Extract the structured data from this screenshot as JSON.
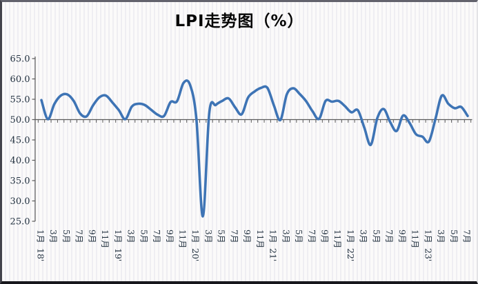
{
  "chart_data": {
    "type": "line",
    "title": "LPI走势图（%）",
    "unit": "%",
    "frequency": "monthly",
    "start_month": "2018-01",
    "end_month": "2023-07",
    "ylim": [
      25.0,
      65.0
    ],
    "y_tick_step": 5.0,
    "y_tick_labels": [
      "65.0",
      "60.0",
      "55.0",
      "50.0",
      "45.0",
      "40.0",
      "35.0",
      "30.0",
      "25.0"
    ],
    "x_axis_cross_value": 50.0,
    "grid": "off",
    "legend": "none",
    "smooth": true,
    "x_tick_labels": [
      {
        "i": 0,
        "m": "1月",
        "y": "18'"
      },
      {
        "i": 2,
        "m": "3月"
      },
      {
        "i": 4,
        "m": "5月"
      },
      {
        "i": 6,
        "m": "7月"
      },
      {
        "i": 8,
        "m": "9月"
      },
      {
        "i": 10,
        "m": "11月"
      },
      {
        "i": 12,
        "m": "1月",
        "y": "19'"
      },
      {
        "i": 14,
        "m": "3月"
      },
      {
        "i": 16,
        "m": "5月"
      },
      {
        "i": 18,
        "m": "7月"
      },
      {
        "i": 20,
        "m": "9月"
      },
      {
        "i": 22,
        "m": "11月"
      },
      {
        "i": 24,
        "m": "1月",
        "y": "20'"
      },
      {
        "i": 26,
        "m": "3月"
      },
      {
        "i": 28,
        "m": "5月"
      },
      {
        "i": 30,
        "m": "7月"
      },
      {
        "i": 32,
        "m": "9月"
      },
      {
        "i": 34,
        "m": "11月"
      },
      {
        "i": 36,
        "m": "1月",
        "y": "21'"
      },
      {
        "i": 38,
        "m": "3月"
      },
      {
        "i": 40,
        "m": "5月"
      },
      {
        "i": 42,
        "m": "7月"
      },
      {
        "i": 44,
        "m": "9月"
      },
      {
        "i": 46,
        "m": "11月"
      },
      {
        "i": 48,
        "m": "1月",
        "y": "22'"
      },
      {
        "i": 50,
        "m": "3月"
      },
      {
        "i": 52,
        "m": "5月"
      },
      {
        "i": 54,
        "m": "7月"
      },
      {
        "i": 56,
        "m": "9月"
      },
      {
        "i": 58,
        "m": "11月"
      },
      {
        "i": 60,
        "m": "1月",
        "y": "23'"
      },
      {
        "i": 62,
        "m": "3月"
      },
      {
        "i": 64,
        "m": "5月"
      },
      {
        "i": 66,
        "m": "7月"
      }
    ],
    "values": [
      54.8,
      50.1,
      53.8,
      55.9,
      56.2,
      54.6,
      51.5,
      50.8,
      53.5,
      55.5,
      55.9,
      54.2,
      52.3,
      50.1,
      53.2,
      53.9,
      53.6,
      52.4,
      51.2,
      50.9,
      54.3,
      54.5,
      59.0,
      58.6,
      50.2,
      26.2,
      51.8,
      53.6,
      54.6,
      55.2,
      53.0,
      51.3,
      55.4,
      56.9,
      57.8,
      57.8,
      53.5,
      49.9,
      56.2,
      57.7,
      56.3,
      54.5,
      52.0,
      50.2,
      54.6,
      54.4,
      54.6,
      53.3,
      51.8,
      52.3,
      48.0,
      43.8,
      50.3,
      52.6,
      49.4,
      47.2,
      51.0,
      49.2,
      46.4,
      45.8,
      44.6,
      50.1,
      55.9,
      53.9,
      52.8,
      53.1,
      50.9
    ],
    "colors": {
      "line": "#3E74B5",
      "axis": "#5a5a5a",
      "tick_label": "#233240",
      "title": "#060606"
    }
  }
}
